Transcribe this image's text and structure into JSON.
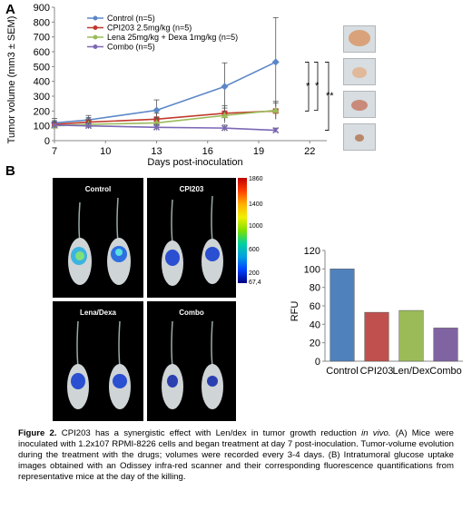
{
  "panel_labels": {
    "a": "A",
    "b": "B"
  },
  "chart_data": [
    {
      "type": "line",
      "xlabel": "Days post-inoculation",
      "ylabel": "Tumor volume (mm3 ± SEM)",
      "xlim": [
        7,
        23
      ],
      "ylim": [
        0,
        900
      ],
      "x_ticks": [
        "7",
        "10",
        "13",
        "16",
        "19",
        "22"
      ],
      "y_ticks": [
        "0",
        "100",
        "200",
        "300",
        "400",
        "500",
        "600",
        "700",
        "800",
        "900"
      ],
      "grid": false,
      "legend": "top-left",
      "series": [
        {
          "name": "Control (n=5)",
          "color": "#5b87c8",
          "marker": "diamond",
          "x": [
            7,
            9,
            13,
            17,
            20
          ],
          "y": [
            120,
            140,
            205,
            365,
            530
          ],
          "err": [
            30,
            30,
            70,
            160,
            300
          ]
        },
        {
          "name": "CPI203 2.5mg/kg (n=5)",
          "color": "#c0392b",
          "marker": "square",
          "x": [
            7,
            9,
            13,
            17,
            20
          ],
          "y": [
            110,
            125,
            145,
            185,
            200
          ],
          "err": [
            25,
            30,
            40,
            50,
            55
          ]
        },
        {
          "name": "Lena 25mg/kg + Dexa 1mg/kg (n=5)",
          "color": "#9bbb59",
          "marker": "triangle",
          "x": [
            7,
            9,
            13,
            17,
            20
          ],
          "y": [
            100,
            110,
            120,
            170,
            205
          ],
          "err": [
            25,
            25,
            35,
            50,
            60
          ]
        },
        {
          "name": "Combo (n=5)",
          "color": "#7b68b5",
          "marker": "x",
          "x": [
            7,
            9,
            13,
            17,
            20
          ],
          "y": [
            105,
            100,
            90,
            85,
            70
          ],
          "err": [
            20,
            20,
            20,
            20,
            15
          ]
        }
      ],
      "significance": [
        "*",
        "*",
        "**"
      ]
    },
    {
      "type": "bar",
      "ylabel": "RFU",
      "ylim": [
        0,
        120
      ],
      "y_ticks": [
        "0",
        "20",
        "40",
        "60",
        "80",
        "100",
        "120"
      ],
      "categories": [
        "Control",
        "CPI203",
        "Len/Dex",
        "Combo"
      ],
      "values": [
        100,
        53,
        55,
        36
      ],
      "colors": [
        "#4f81bd",
        "#c0504d",
        "#9bbb59",
        "#8064a2"
      ]
    }
  ],
  "imaging": {
    "panels": [
      "Control",
      "CPI203",
      "Lena/Dexa",
      "Combo"
    ],
    "colorbar_ticks": [
      "1860",
      "1400",
      "1000",
      "600",
      "200",
      "67,4"
    ]
  },
  "caption": {
    "bold": "Figure 2.",
    "text": " CPI203 has a synergistic effect with Len/dex in tumor growth reduction ",
    "italic": "in vivo.",
    "rest": " (A) Mice were inoculated with 1.2x107 RPMI-8226 cells and began treatment at day 7 post-inoculation. Tumor-volume evolution during the treatment with the drugs; volumes were recorded every 3-4 days. (B) Intratumoral glucose uptake images obtained with an Odissey infra-red scanner and their corresponding fluorescence quantifications from representative mice at the day of the killing."
  }
}
